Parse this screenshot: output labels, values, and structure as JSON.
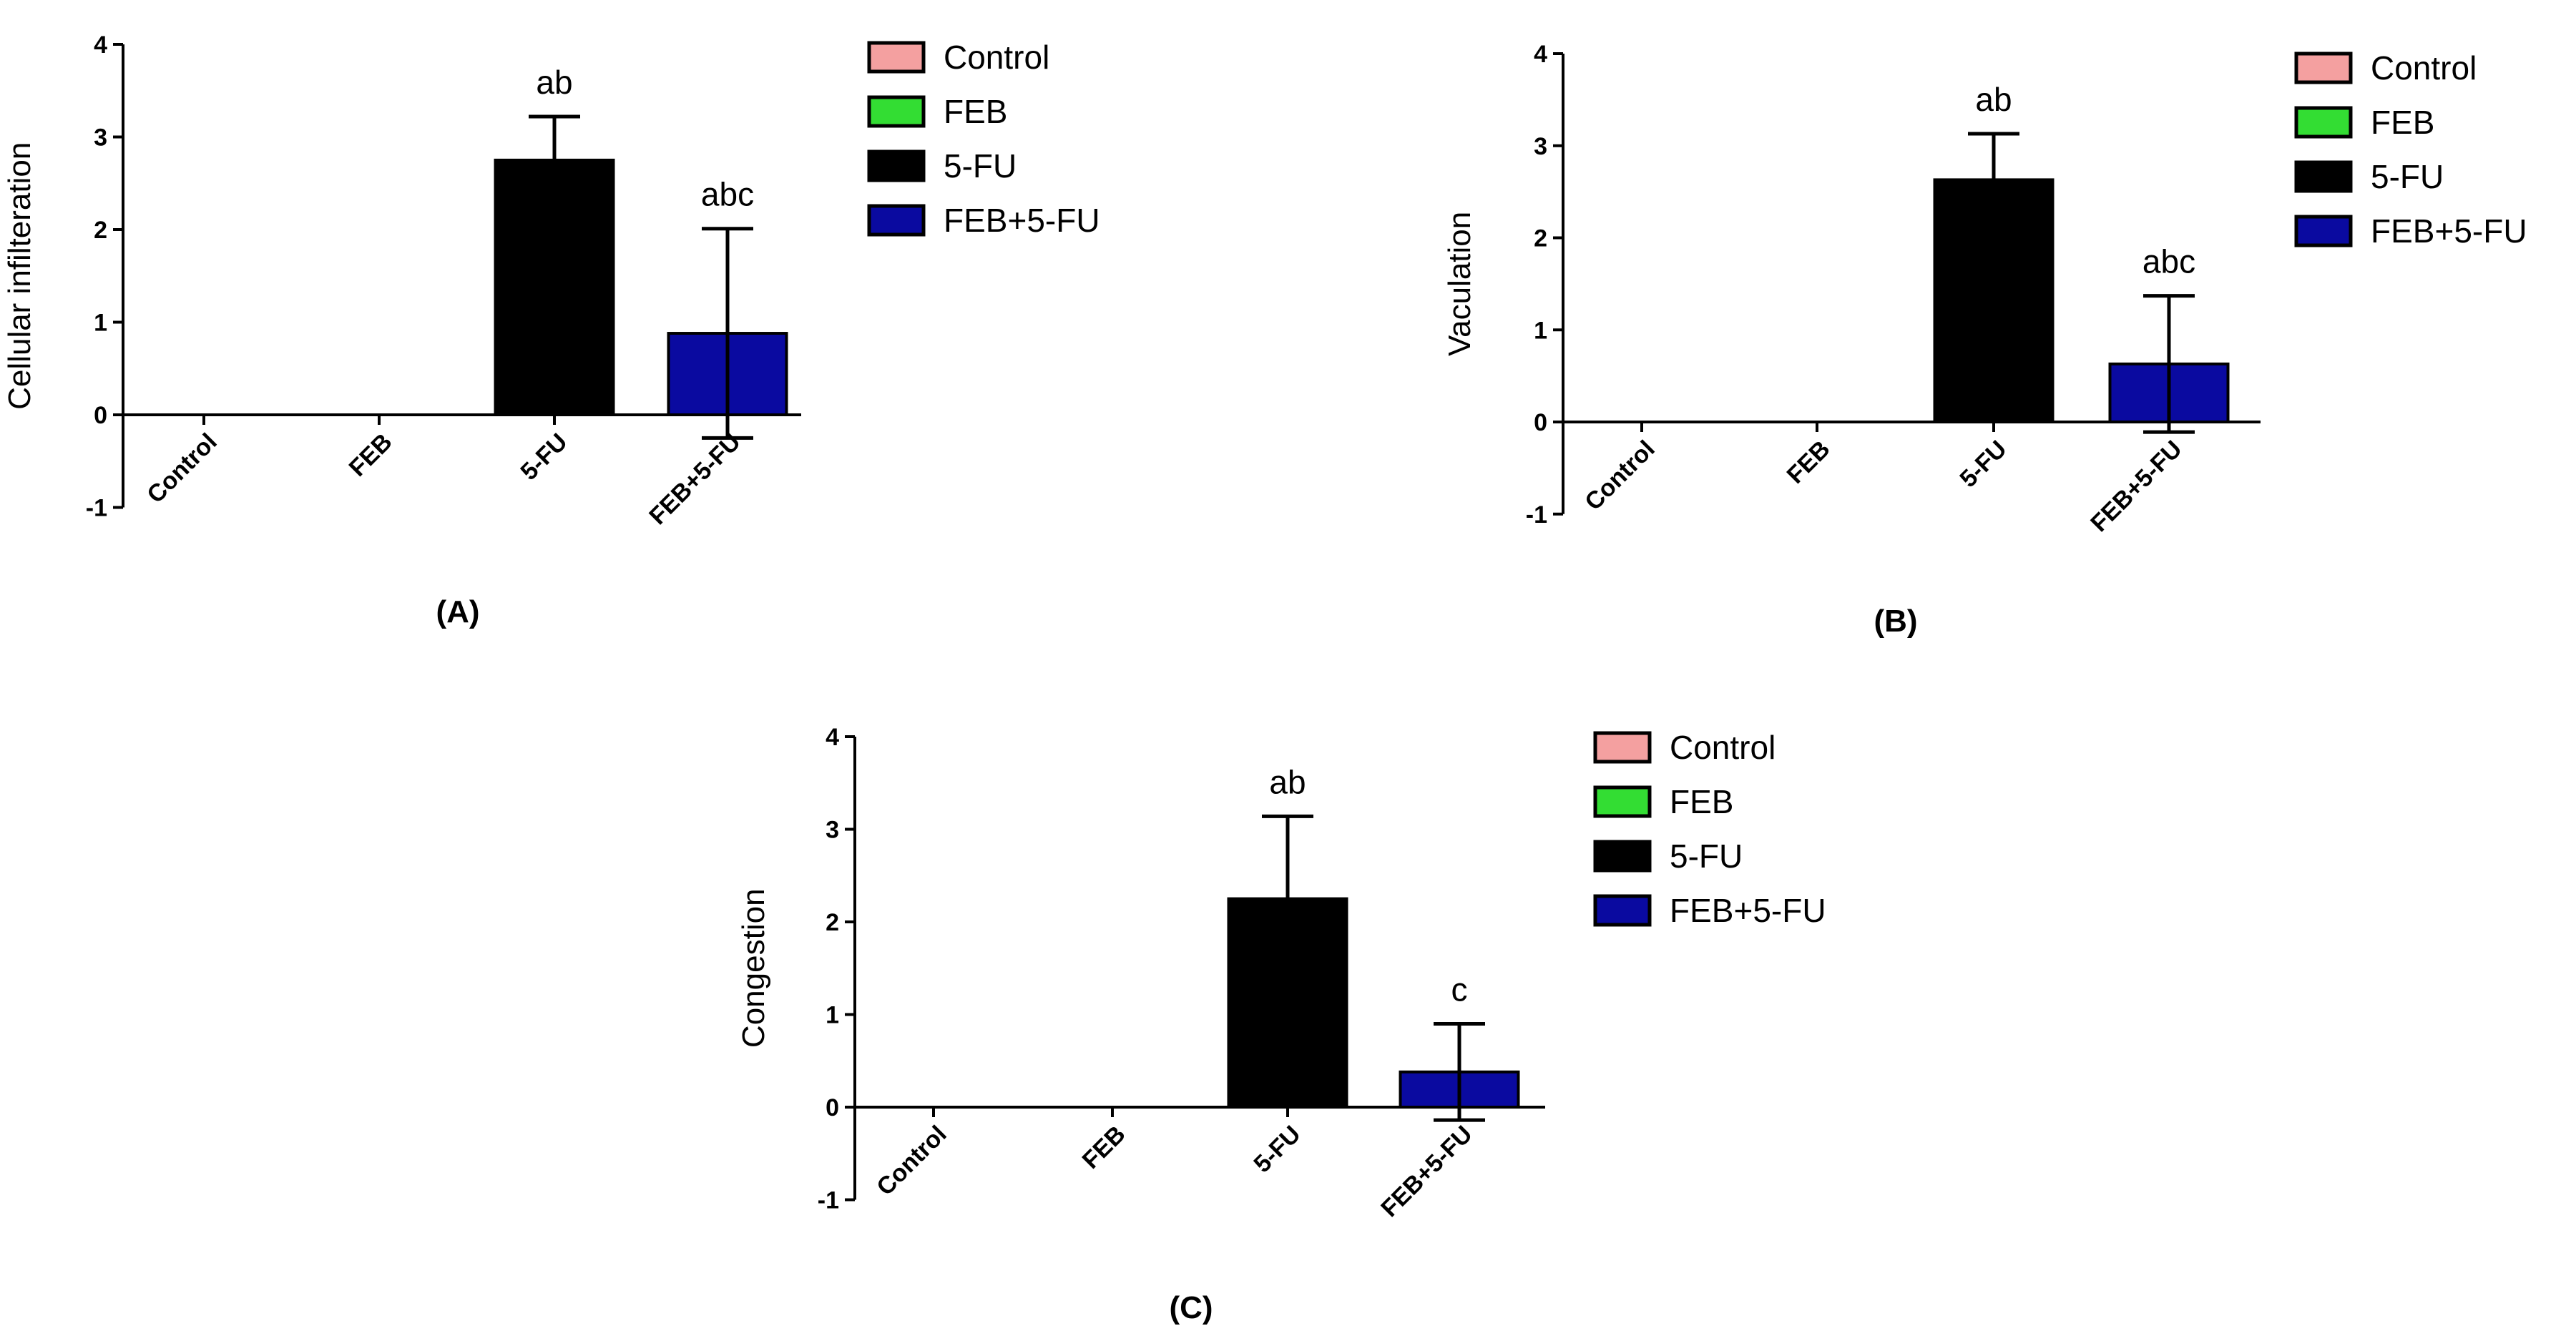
{
  "chart_data": [
    {
      "type": "bar",
      "panel_label": "(A)",
      "ylabel": "Cellular infilteration",
      "ylim": [
        -1,
        4
      ],
      "yticks": [
        "-1",
        "0",
        "1",
        "2",
        "3",
        "4"
      ],
      "categories": [
        "Control",
        "FEB",
        "5-FU",
        "FEB+5-FU"
      ],
      "values": [
        0,
        0,
        2.75,
        0.88
      ],
      "errors": [
        0,
        0,
        0.47,
        1.13
      ],
      "significance": [
        "",
        "",
        "ab",
        "abc"
      ],
      "colors": [
        "#f4a0a0",
        "#33dd33",
        "#000000",
        "#0a0aa0"
      ],
      "legend": [
        "Control",
        "FEB",
        "5-FU",
        "FEB+5-FU"
      ],
      "legend_position": "right"
    },
    {
      "type": "bar",
      "panel_label": "(B)",
      "ylabel": "Vaculation",
      "ylim": [
        -1,
        4
      ],
      "yticks": [
        "-1",
        "0",
        "1",
        "2",
        "3",
        "4"
      ],
      "categories": [
        "Control",
        "FEB",
        "5-FU",
        "FEB+5-FU"
      ],
      "values": [
        0,
        0,
        2.63,
        0.63
      ],
      "errors": [
        0,
        0,
        0.5,
        0.74
      ],
      "significance": [
        "",
        "",
        "ab",
        "abc"
      ],
      "colors": [
        "#f4a0a0",
        "#33dd33",
        "#000000",
        "#0a0aa0"
      ],
      "legend": [
        "Control",
        "FEB",
        "5-FU",
        "FEB+5-FU"
      ],
      "legend_position": "right"
    },
    {
      "type": "bar",
      "panel_label": "(C)",
      "ylabel": "Congestion",
      "ylim": [
        -1,
        4
      ],
      "yticks": [
        "-1",
        "0",
        "1",
        "2",
        "3",
        "4"
      ],
      "categories": [
        "Control",
        "FEB",
        "5-FU",
        "FEB+5-FU"
      ],
      "values": [
        0,
        0,
        2.25,
        0.38
      ],
      "errors": [
        0,
        0,
        0.89,
        0.52
      ],
      "significance": [
        "",
        "",
        "ab",
        "c"
      ],
      "colors": [
        "#f4a0a0",
        "#33dd33",
        "#000000",
        "#0a0aa0"
      ],
      "legend": [
        "Control",
        "FEB",
        "5-FU",
        "FEB+5-FU"
      ],
      "legend_position": "right"
    }
  ]
}
